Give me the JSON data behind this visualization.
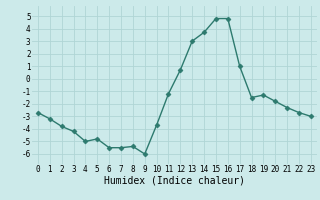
{
  "x": [
    0,
    1,
    2,
    3,
    4,
    5,
    6,
    7,
    8,
    9,
    10,
    11,
    12,
    13,
    14,
    15,
    16,
    17,
    18,
    19,
    20,
    21,
    22,
    23
  ],
  "y": [
    -2.7,
    -3.2,
    -3.8,
    -4.2,
    -5.0,
    -4.8,
    -5.5,
    -5.5,
    -5.4,
    -6.0,
    -3.7,
    -1.2,
    0.7,
    3.0,
    3.7,
    4.8,
    4.8,
    1.0,
    -1.5,
    -1.3,
    -1.8,
    -2.3,
    -2.7,
    -3.0
  ],
  "line_color": "#2d7a6e",
  "marker": "D",
  "marker_size": 2.5,
  "bg_color": "#cceaea",
  "grid_color": "#b0d5d5",
  "xlabel": "Humidex (Indice chaleur)",
  "ylim": [
    -6.8,
    5.8
  ],
  "xlim": [
    -0.5,
    23.5
  ],
  "yticks": [
    -6,
    -5,
    -4,
    -3,
    -2,
    -1,
    0,
    1,
    2,
    3,
    4,
    5
  ],
  "xticks": [
    0,
    1,
    2,
    3,
    4,
    5,
    6,
    7,
    8,
    9,
    10,
    11,
    12,
    13,
    14,
    15,
    16,
    17,
    18,
    19,
    20,
    21,
    22,
    23
  ],
  "tick_fontsize": 5.5,
  "label_fontsize": 7,
  "linewidth": 1.0
}
